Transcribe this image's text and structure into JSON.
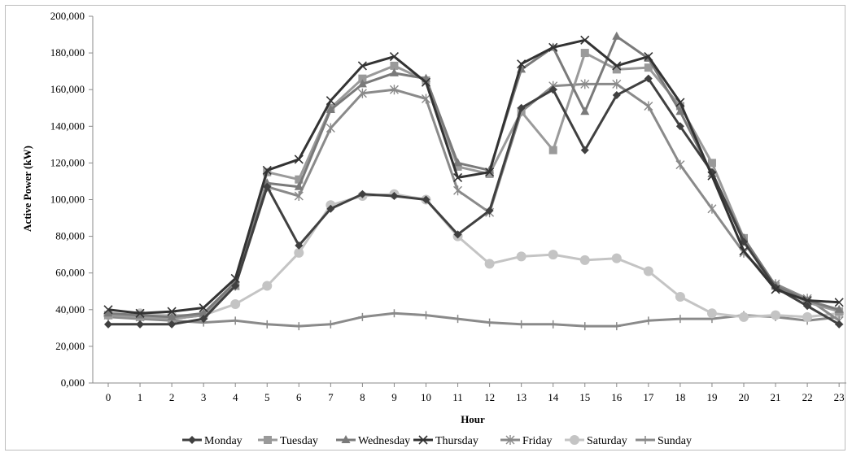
{
  "chart_data": {
    "type": "line",
    "title": "",
    "xlabel": "Hour",
    "ylabel": "Active Power (kW)",
    "x": [
      0,
      1,
      2,
      3,
      4,
      5,
      6,
      7,
      8,
      9,
      10,
      11,
      12,
      13,
      14,
      15,
      16,
      17,
      18,
      19,
      20,
      21,
      22,
      23
    ],
    "ylim": [
      0,
      200000
    ],
    "yticks": [
      "0,000",
      "20,000",
      "40,000",
      "60,000",
      "80,000",
      "100,000",
      "120,000",
      "140,000",
      "160,000",
      "180,000",
      "200,000"
    ],
    "grid": false,
    "legend_position": "bottom",
    "series": [
      {
        "name": "Monday",
        "marker": "diamond",
        "color": "#404040",
        "values": [
          32000,
          32000,
          32000,
          35000,
          53000,
          107000,
          75000,
          95000,
          103000,
          102000,
          100000,
          81000,
          94000,
          150000,
          160000,
          127000,
          157000,
          166000,
          140000,
          115000,
          77000,
          52000,
          42000,
          32000
        ]
      },
      {
        "name": "Tuesday",
        "marker": "square",
        "color": "#9a9a9a",
        "values": [
          37000,
          36000,
          35000,
          37000,
          53000,
          115000,
          111000,
          150000,
          166000,
          173000,
          165000,
          118000,
          114000,
          148000,
          127000,
          180000,
          171000,
          172000,
          151000,
          120000,
          79000,
          53000,
          44000,
          39000
        ]
      },
      {
        "name": "Wednesday",
        "marker": "triangle",
        "color": "#7a7a7a",
        "values": [
          38000,
          37000,
          36000,
          38000,
          55000,
          109000,
          107000,
          149000,
          163000,
          169000,
          166000,
          120000,
          116000,
          171000,
          183000,
          148000,
          189000,
          177000,
          148000,
          114000,
          79000,
          53000,
          45000,
          40000
        ]
      },
      {
        "name": "Thursday",
        "marker": "x",
        "color": "#333333",
        "values": [
          40000,
          38000,
          39000,
          41000,
          57000,
          116000,
          122000,
          154000,
          173000,
          178000,
          164000,
          112000,
          115000,
          174000,
          183000,
          187000,
          173000,
          178000,
          153000,
          113000,
          72000,
          51000,
          45000,
          44000
        ]
      },
      {
        "name": "Friday",
        "marker": "asterisk",
        "color": "#8a8a8a",
        "values": [
          37000,
          36000,
          35000,
          37000,
          53000,
          107000,
          102000,
          139000,
          158000,
          160000,
          155000,
          105000,
          93000,
          148000,
          162000,
          163000,
          163000,
          151000,
          119000,
          95000,
          71000,
          54000,
          46000,
          34000
        ]
      },
      {
        "name": "Saturday",
        "marker": "circle",
        "color": "#c4c4c4",
        "values": [
          37000,
          38000,
          37000,
          37000,
          43000,
          53000,
          71000,
          97000,
          102000,
          103000,
          100000,
          80000,
          65000,
          69000,
          70000,
          67000,
          68000,
          61000,
          47000,
          38000,
          36000,
          37000,
          36000,
          38000
        ]
      },
      {
        "name": "Sunday",
        "marker": "plus",
        "color": "#8a8a8a",
        "values": [
          36000,
          35000,
          34000,
          33000,
          34000,
          32000,
          31000,
          32000,
          36000,
          38000,
          37000,
          35000,
          33000,
          32000,
          32000,
          31000,
          31000,
          34000,
          35000,
          35000,
          37000,
          36000,
          34000,
          36000
        ]
      }
    ]
  }
}
